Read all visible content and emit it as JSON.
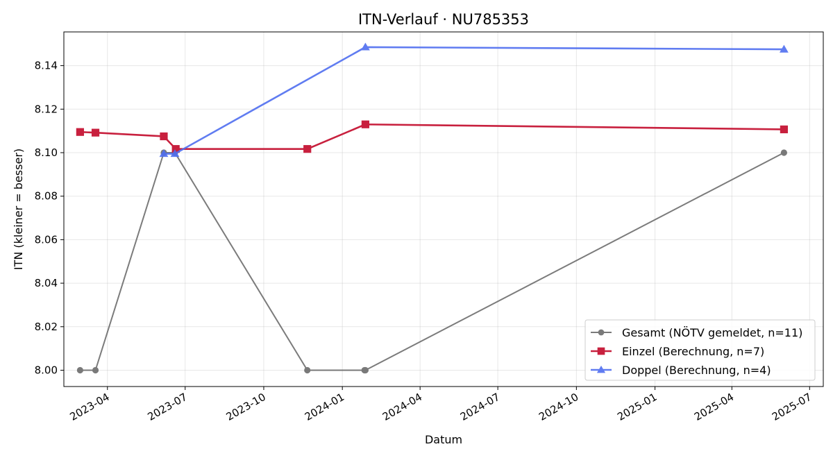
{
  "chart_data": {
    "type": "line",
    "title": "ITN-Verlauf · NU785353",
    "xlabel": "Datum",
    "ylabel": "ITN  (kleiner = besser)",
    "x_type": "date",
    "xlim": [
      "2023-02-09",
      "2025-07-17"
    ],
    "ylim": [
      7.9925,
      8.1555
    ],
    "x_ticks": [
      "2023-04-01",
      "2023-07-01",
      "2023-10-01",
      "2024-01-01",
      "2024-04-01",
      "2024-07-01",
      "2024-10-01",
      "2025-01-01",
      "2025-04-01",
      "2025-07-01"
    ],
    "x_tick_labels": [
      "2023-04",
      "2023-07",
      "2023-10",
      "2024-01",
      "2024-04",
      "2024-07",
      "2024-10",
      "2025-01",
      "2025-04",
      "2025-07"
    ],
    "y_ticks": [
      8.0,
      8.02,
      8.04,
      8.06,
      8.08,
      8.1,
      8.12,
      8.14
    ],
    "y_tick_labels": [
      "8.00",
      "8.02",
      "8.04",
      "8.06",
      "8.08",
      "8.10",
      "8.12",
      "8.14"
    ],
    "grid": true,
    "legend_position": "lower-right",
    "series": [
      {
        "name": "Gesamt (NÖTV gemeldet, n=11)",
        "color": "#5a5a5a",
        "marker": "circle",
        "points": [
          {
            "x": "2023-02-28",
            "y": 8.0
          },
          {
            "x": "2023-03-18",
            "y": 8.0
          },
          {
            "x": "2023-06-06",
            "y": 8.1
          },
          {
            "x": "2023-06-19",
            "y": 8.1
          },
          {
            "x": "2023-11-21",
            "y": 8.0
          },
          {
            "x": "2024-01-27",
            "y": 8.0
          },
          {
            "x": "2024-01-28",
            "y": 8.0
          },
          {
            "x": "2025-06-01",
            "y": 8.1
          }
        ]
      },
      {
        "name": "Einzel (Berechnung, n=7)",
        "color": "#c8203e",
        "marker": "square",
        "points": [
          {
            "x": "2023-02-28",
            "y": 8.1095
          },
          {
            "x": "2023-03-18",
            "y": 8.1092
          },
          {
            "x": "2023-06-06",
            "y": 8.1075
          },
          {
            "x": "2023-06-20",
            "y": 8.1017
          },
          {
            "x": "2023-11-21",
            "y": 8.1017
          },
          {
            "x": "2024-01-28",
            "y": 8.113
          },
          {
            "x": "2025-06-01",
            "y": 8.1107
          }
        ]
      },
      {
        "name": "Doppel (Berechnung, n=4)",
        "color": "#4f6ef0",
        "marker": "triangle",
        "points": [
          {
            "x": "2023-06-06",
            "y": 8.0995
          },
          {
            "x": "2023-06-19",
            "y": 8.0995
          },
          {
            "x": "2024-01-28",
            "y": 8.1485
          },
          {
            "x": "2025-06-01",
            "y": 8.1475
          }
        ]
      }
    ]
  }
}
